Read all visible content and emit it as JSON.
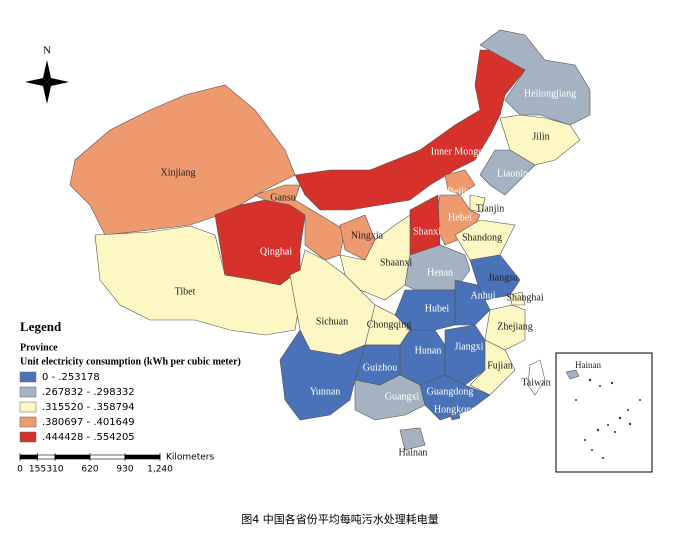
{
  "map": {
    "north": "N",
    "caption": "图4 中国各省份平均每吨污水处理耗电量",
    "legend": {
      "title": "Legend",
      "layer": "Province",
      "field": "Unit electricity consumption (kWh per cubic meter)",
      "classes": [
        {
          "label": "0 - .253178",
          "color": "#4a72b8"
        },
        {
          "label": ".267832 - .298332",
          "color": "#a5b2c2"
        },
        {
          "label": ".315520 - .358794",
          "color": "#fdf7c3"
        },
        {
          "label": ".380697 - .401649",
          "color": "#ef9a6e"
        },
        {
          "label": ".444428 - .554205",
          "color": "#d7312b"
        }
      ]
    },
    "scale": {
      "unit": "Kilometers",
      "ticks": [
        0,
        155,
        310,
        620,
        930,
        {
          "value": 1240,
          "label": "1,240"
        }
      ]
    },
    "inset_label": "Hainan",
    "provinces": [
      {
        "name": "Xinjiang",
        "class": 3
      },
      {
        "name": "Tibet",
        "class": 2
      },
      {
        "name": "Qinghai",
        "class": 4
      },
      {
        "name": "Gansu",
        "class": 3
      },
      {
        "name": "Inner Mongolia",
        "class": 4
      },
      {
        "name": "Heilongjiang",
        "class": 1
      },
      {
        "name": "Jilin",
        "class": 2
      },
      {
        "name": "Liaoning",
        "class": 1
      },
      {
        "name": "Beijing",
        "class": 3
      },
      {
        "name": "Tianjin",
        "class": 2
      },
      {
        "name": "Hebei",
        "class": 3
      },
      {
        "name": "Shanxi",
        "class": 4
      },
      {
        "name": "Ningxia",
        "class": 3
      },
      {
        "name": "Shaanxi",
        "class": 2
      },
      {
        "name": "Shandong",
        "class": 2
      },
      {
        "name": "Henan",
        "class": 1
      },
      {
        "name": "Jiangsu",
        "class": 0
      },
      {
        "name": "Anhui",
        "class": 0
      },
      {
        "name": "Shanghai",
        "class": 2
      },
      {
        "name": "Zhejiang",
        "class": 2
      },
      {
        "name": "Hubei",
        "class": 0
      },
      {
        "name": "Sichuan",
        "class": 2
      },
      {
        "name": "Chongqing",
        "class": 2
      },
      {
        "name": "Hunan",
        "class": 0
      },
      {
        "name": "Jiangxi",
        "class": 0
      },
      {
        "name": "Fujian",
        "class": 2
      },
      {
        "name": "Guizhou",
        "class": 0
      },
      {
        "name": "Yunnan",
        "class": 0
      },
      {
        "name": "Guangxi",
        "class": 1
      },
      {
        "name": "Guangdong",
        "class": 0
      },
      {
        "name": "Hongkong",
        "class": 0
      },
      {
        "name": "Hainan",
        "class": 1
      },
      {
        "name": "Taiwan",
        "class": null
      }
    ]
  }
}
